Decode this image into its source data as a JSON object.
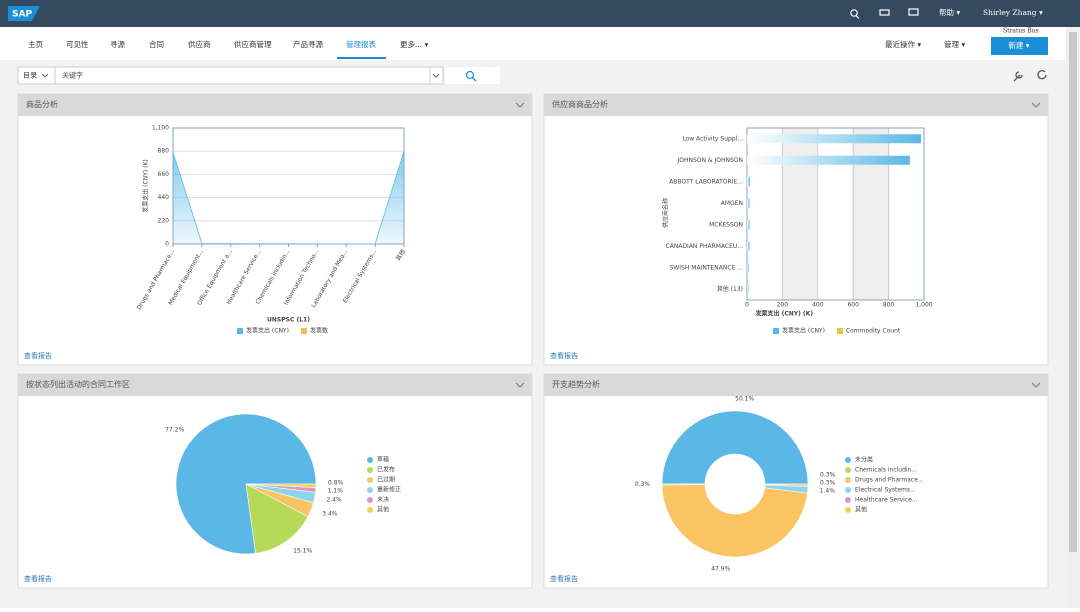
{
  "header": {
    "logo": "SAP",
    "help": "帮助 ▾",
    "user": "Shirley Zhang ▾",
    "site": "Stratus Bus"
  },
  "nav": {
    "items": [
      "主页",
      "可见性",
      "寻源",
      "合同",
      "供应商",
      "供应商管理",
      "产品寻源",
      "管理报表",
      "更多... ▾"
    ],
    "recent": "最近操作 ▾",
    "manage": "管理 ▾",
    "create": "新建 ▾"
  },
  "search": {
    "scope": "目录",
    "placeholder": "关键字"
  },
  "panels": [
    {
      "title": "商品分析",
      "link": "查看报告"
    },
    {
      "title": "供应商商品分析",
      "link": "查看报告"
    },
    {
      "title": "按状态列出活动的合同工作区",
      "link": "查看报告"
    },
    {
      "title": "开支趋势分析",
      "link": "查看报告"
    }
  ],
  "chart_data": [
    {
      "type": "area",
      "ylabel": "发票支出 (CNY) (K)",
      "xlabel": "UNSPSC (L1)",
      "categories": [
        "Drugs and Pharmace...",
        "Medical Equipment...",
        "Office Equipment a...",
        "Healthcare Service...",
        "Chemicals includin...",
        "Information Techno...",
        "Laboratory and Mea...",
        "Electrical Systems...",
        "其他"
      ],
      "series": [
        {
          "name": "发票支出 (CNY)",
          "color": "#5bb8e6",
          "values": [
            870,
            5,
            3,
            2,
            2,
            1,
            1,
            1,
            880
          ]
        },
        {
          "name": "发票数",
          "color": "#e5c44b",
          "values": [
            null,
            null,
            null,
            null,
            null,
            null,
            null,
            null,
            null
          ]
        }
      ],
      "ylim": [
        0,
        1100
      ],
      "yticks": [
        0,
        220,
        440,
        660,
        880,
        {
          "value": 1100,
          "label": "1,100"
        }
      ],
      "grid": true
    },
    {
      "type": "hbar",
      "ylabel": "供应商名称",
      "xlabel": "发票支出 (CNY) (K)",
      "categories": [
        "Low Activity Suppl...",
        "JOHNSON & JOHNSON",
        "ABBOTT LABORATORIE...",
        "AMGEN",
        "MCKESSON",
        "CANADIAN PHARMACEU...",
        "SWISH MAINTENANCE ...",
        "其他 (13)"
      ],
      "series": [
        {
          "name": "发票支出 (CNY)",
          "color": "#5bb8e6",
          "values": [
            983,
            920,
            17,
            15,
            15,
            15,
            10,
            1
          ]
        },
        {
          "name": "Commodity Count",
          "color": "#e5c44b",
          "values": [
            null,
            null,
            null,
            null,
            null,
            null,
            null,
            null
          ]
        }
      ],
      "xlim": [
        0,
        1000
      ],
      "xticks": [
        0,
        200,
        400,
        600,
        800,
        {
          "value": 1000,
          "label": "1,000"
        }
      ],
      "grid": true
    },
    {
      "type": "pie",
      "categories": [
        "草稿",
        "已发布",
        "已过期",
        "重新修正",
        "未决",
        "其他"
      ],
      "values": [
        77.2,
        15.1,
        3.4,
        2.4,
        1.1,
        0.8
      ],
      "value_labels": [
        "77.2%",
        "15.1%",
        "3.4%",
        "2.4%",
        "1.1%",
        "0.8%"
      ],
      "colors": [
        "#5bb8e6",
        "#b6d957",
        "#fac364",
        "#8cd3ec",
        "#d998cb",
        "#f2d249"
      ]
    },
    {
      "type": "donut",
      "categories": [
        "未分类",
        "Chemicals includin...",
        "Drugs and Pharmace...",
        "Electrical Systems...",
        "Healthcare Service...",
        "其他"
      ],
      "values": [
        50.1,
        0.3,
        47.9,
        1.4,
        0.3,
        0.3
      ],
      "value_labels": [
        "50.1%",
        "0.3%",
        "47.9%",
        "1.4%",
        "0.3%",
        "0.3%"
      ],
      "colors": [
        "#5bb8e6",
        "#b6d957",
        "#fac364",
        "#8cd3ec",
        "#d998cb",
        "#f2d249"
      ]
    }
  ]
}
